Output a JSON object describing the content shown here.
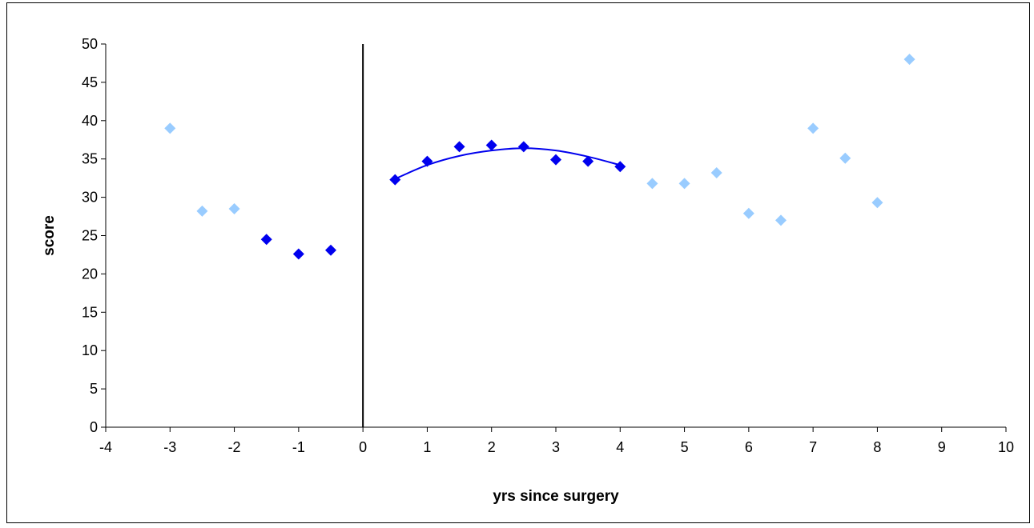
{
  "chart_data": {
    "type": "scatter",
    "title": "",
    "xlabel": "yrs since surgery",
    "ylabel": "score",
    "xlim": [
      -4,
      10
    ],
    "ylim": [
      0,
      50
    ],
    "x_ticks": [
      -4,
      -3,
      -2,
      -1,
      0,
      1,
      2,
      3,
      4,
      5,
      6,
      7,
      8,
      9,
      10
    ],
    "y_ticks": [
      0,
      5,
      10,
      15,
      20,
      25,
      30,
      35,
      40,
      45,
      50
    ],
    "grid": false,
    "legend": "none",
    "vertical_reference_line_x": 0,
    "series": [
      {
        "color": "#99ccff",
        "marker": "diamond",
        "points": [
          {
            "x": -3,
            "y": 39
          },
          {
            "x": -2.5,
            "y": 28.2
          },
          {
            "x": -2,
            "y": 28.5
          },
          {
            "x": 4.5,
            "y": 31.8
          },
          {
            "x": 5,
            "y": 31.8
          },
          {
            "x": 5.5,
            "y": 33.2
          },
          {
            "x": 6,
            "y": 27.9
          },
          {
            "x": 6.5,
            "y": 27
          },
          {
            "x": 7,
            "y": 39
          },
          {
            "x": 7.5,
            "y": 35.1
          },
          {
            "x": 8,
            "y": 29.3
          },
          {
            "x": 8.5,
            "y": 48
          }
        ]
      },
      {
        "color": "#0000ee",
        "marker": "diamond",
        "points": [
          {
            "x": -1.5,
            "y": 24.5
          },
          {
            "x": -1,
            "y": 22.6
          },
          {
            "x": -0.5,
            "y": 23.1
          },
          {
            "x": 0.5,
            "y": 32.3
          },
          {
            "x": 1,
            "y": 34.7
          },
          {
            "x": 1.5,
            "y": 36.6
          },
          {
            "x": 2,
            "y": 36.8
          },
          {
            "x": 2.5,
            "y": 36.6
          },
          {
            "x": 3,
            "y": 34.9
          },
          {
            "x": 3.5,
            "y": 34.7
          },
          {
            "x": 4,
            "y": 34
          }
        ]
      }
    ],
    "trendline": {
      "color": "#0000ee",
      "type": "polynomial",
      "points": [
        {
          "x": 0.5,
          "y": 32.4
        },
        {
          "x": 1,
          "y": 34.2
        },
        {
          "x": 1.5,
          "y": 35.4
        },
        {
          "x": 2,
          "y": 36.1
        },
        {
          "x": 2.5,
          "y": 36.4
        },
        {
          "x": 3,
          "y": 36.1
        },
        {
          "x": 3.5,
          "y": 35.3
        },
        {
          "x": 4,
          "y": 34.2
        }
      ]
    }
  }
}
